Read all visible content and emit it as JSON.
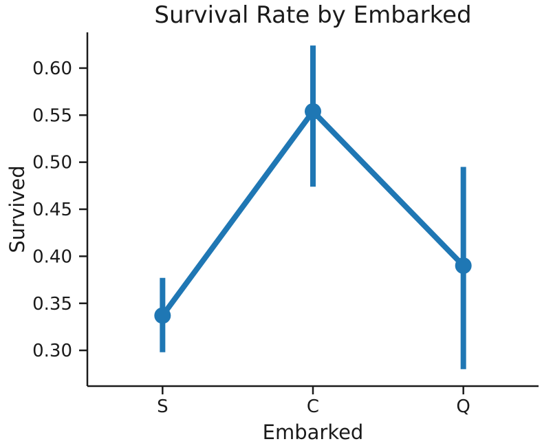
{
  "chart_data": {
    "type": "line",
    "subtype": "pointplot-with-error-bars",
    "title": "Survival Rate by Embarked",
    "xlabel": "Embarked",
    "ylabel": "Survived",
    "categories": [
      "S",
      "C",
      "Q"
    ],
    "series": [
      {
        "name": "Survived",
        "values": [
          0.337,
          0.554,
          0.39
        ],
        "error_low": [
          0.298,
          0.474,
          0.28
        ],
        "error_high": [
          0.377,
          0.624,
          0.495
        ]
      }
    ],
    "ytick_labels": [
      "0.30",
      "0.35",
      "0.40",
      "0.45",
      "0.50",
      "0.55",
      "0.60"
    ],
    "ylim": [
      0.262,
      0.638
    ],
    "xlim": [
      -0.5,
      2.5
    ],
    "grid": false,
    "legend": false,
    "colors": {
      "series": "#1f77b4",
      "axis": "#1a1a1a"
    }
  }
}
